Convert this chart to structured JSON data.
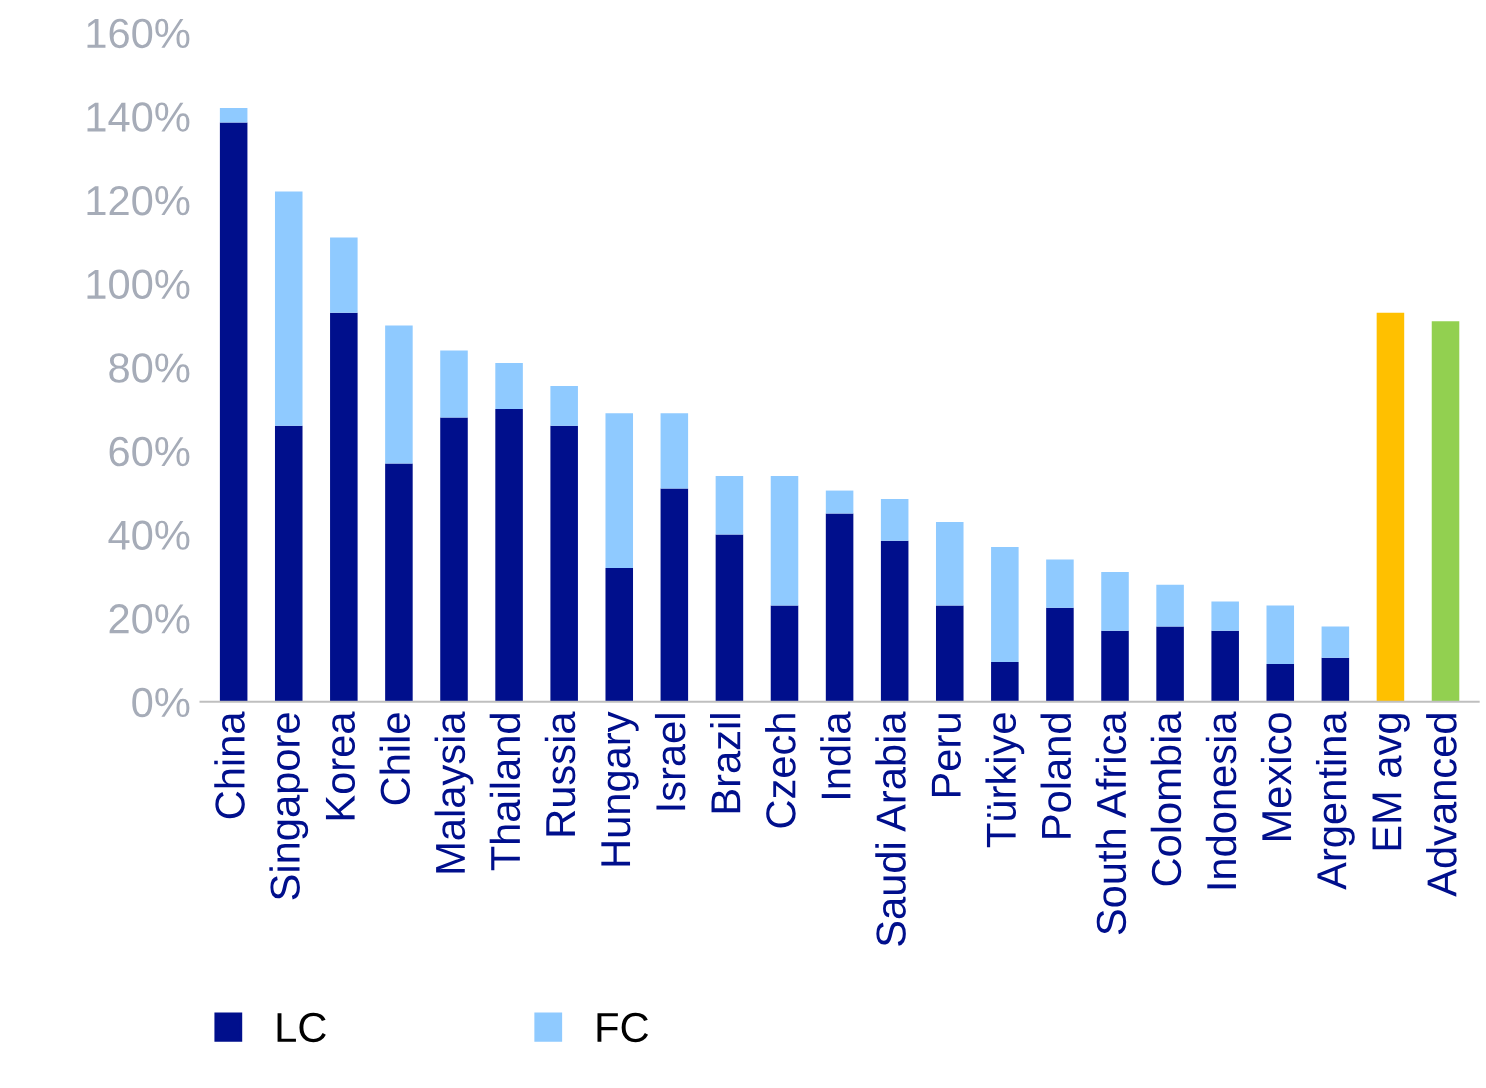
{
  "chart_data": {
    "type": "bar",
    "stacked": true,
    "categories": [
      "China",
      "Singapore",
      "Korea",
      "Chile",
      "Malaysia",
      "Thailand",
      "Russia",
      "Hungary",
      "Israel",
      "Brazil",
      "Czech",
      "India",
      "Saudi Arabia",
      "Peru",
      "Türkiye",
      "Poland",
      "South Africa",
      "Colombia",
      "Indonesia",
      "Mexico",
      "Argentina",
      "EM avg",
      "Advanced"
    ],
    "series": [
      {
        "name": "LC",
        "color": "#000f8c",
        "colors": [
          "#000f8c",
          "#000f8c",
          "#000f8c",
          "#000f8c",
          "#000f8c",
          "#000f8c",
          "#000f8c",
          "#000f8c",
          "#000f8c",
          "#000f8c",
          "#000f8c",
          "#000f8c",
          "#000f8c",
          "#000f8c",
          "#000f8c",
          "#000f8c",
          "#000f8c",
          "#000f8c",
          "#000f8c",
          "#000f8c",
          "#000f8c",
          "#ffc000",
          "#92d050"
        ],
        "values": [
          138.5,
          66,
          93,
          57,
          68,
          70,
          66,
          32,
          51,
          40,
          23,
          45,
          38.5,
          23,
          9.5,
          22.5,
          17,
          18,
          17,
          9,
          10.5,
          93,
          91
        ]
      },
      {
        "name": "FC",
        "color": "#8fcaff",
        "values": [
          3.5,
          56,
          18,
          33,
          16,
          11,
          9.5,
          37,
          18,
          14,
          31,
          5.5,
          10,
          20,
          27.5,
          11.5,
          14,
          10,
          7,
          14,
          7.5,
          null,
          null
        ]
      }
    ],
    "ylim": [
      0,
      160
    ],
    "yticks": [
      {
        "value": 0,
        "label": "0%"
      },
      {
        "value": 20,
        "label": "20%"
      },
      {
        "value": 40,
        "label": "40%"
      },
      {
        "value": 60,
        "label": "60%"
      },
      {
        "value": 80,
        "label": "80%"
      },
      {
        "value": 100,
        "label": "100%"
      },
      {
        "value": 120,
        "label": "120%"
      },
      {
        "value": 140,
        "label": "140%"
      },
      {
        "value": 160,
        "label": "160%"
      }
    ],
    "grid": false,
    "legend": "bottom left"
  }
}
